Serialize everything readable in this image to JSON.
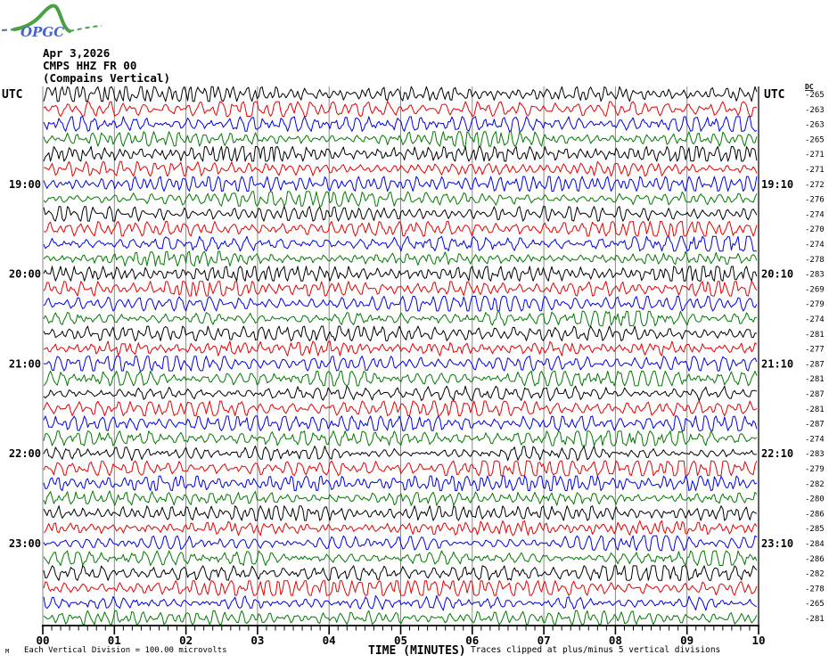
{
  "logo": {
    "text": "OPGC"
  },
  "header": {
    "utc_left": "UTC",
    "utc_right": "UTC"
  },
  "chart_data": {
    "type": "line",
    "subtype": "helicorder-seismogram",
    "title_lines": [
      "Apr 3,2026",
      "CMPS HHZ FR 00",
      "(Compains Vertical)"
    ],
    "xlabel": "TIME (MINUTES)",
    "x_axis": {
      "tick_labels": [
        "00",
        "01",
        "02",
        "03",
        "04",
        "05",
        "06",
        "07",
        "08",
        "09",
        "10"
      ],
      "minor_ticks_per_division": 7,
      "range_minutes": [
        0,
        10
      ]
    },
    "dc_header": "DC",
    "trace_colors": [
      "#000000",
      "#e60000",
      "#0000e6",
      "#007a00"
    ],
    "grid_color": "#8a8a8a",
    "rows": [
      {
        "left": "",
        "right": "",
        "dc": "-265"
      },
      {
        "left": "",
        "right": "",
        "dc": "-263"
      },
      {
        "left": "",
        "right": "",
        "dc": "-263"
      },
      {
        "left": "",
        "right": "",
        "dc": "-265"
      },
      {
        "left": "",
        "right": "",
        "dc": "-271"
      },
      {
        "left": "",
        "right": "",
        "dc": "-271"
      },
      {
        "left": "19:00",
        "right": "19:10",
        "dc": "-272"
      },
      {
        "left": "",
        "right": "",
        "dc": "-276"
      },
      {
        "left": "",
        "right": "",
        "dc": "-274"
      },
      {
        "left": "",
        "right": "",
        "dc": "-270"
      },
      {
        "left": "",
        "right": "",
        "dc": "-274"
      },
      {
        "left": "",
        "right": "",
        "dc": "-278"
      },
      {
        "left": "20:00",
        "right": "20:10",
        "dc": "-283"
      },
      {
        "left": "",
        "right": "",
        "dc": "-269"
      },
      {
        "left": "",
        "right": "",
        "dc": "-279"
      },
      {
        "left": "",
        "right": "",
        "dc": "-274"
      },
      {
        "left": "",
        "right": "",
        "dc": "-281"
      },
      {
        "left": "",
        "right": "",
        "dc": "-277"
      },
      {
        "left": "21:00",
        "right": "21:10",
        "dc": "-287"
      },
      {
        "left": "",
        "right": "",
        "dc": "-281"
      },
      {
        "left": "",
        "right": "",
        "dc": "-287"
      },
      {
        "left": "",
        "right": "",
        "dc": "-281"
      },
      {
        "left": "",
        "right": "",
        "dc": "-287"
      },
      {
        "left": "",
        "right": "",
        "dc": "-274"
      },
      {
        "left": "22:00",
        "right": "22:10",
        "dc": "-283"
      },
      {
        "left": "",
        "right": "",
        "dc": "-279"
      },
      {
        "left": "",
        "right": "",
        "dc": "-282"
      },
      {
        "left": "",
        "right": "",
        "dc": "-280"
      },
      {
        "left": "",
        "right": "",
        "dc": "-286"
      },
      {
        "left": "",
        "right": "",
        "dc": "-285"
      },
      {
        "left": "23:00",
        "right": "23:10",
        "dc": "-284"
      },
      {
        "left": "",
        "right": "",
        "dc": "-286"
      },
      {
        "left": "",
        "right": "",
        "dc": "-282"
      },
      {
        "left": "",
        "right": "",
        "dc": "-278"
      },
      {
        "left": "",
        "right": "",
        "dc": "-265"
      },
      {
        "left": "",
        "right": "",
        "dc": "-281"
      }
    ],
    "scale_note": "Each Vertical Division =  100.00 microvolts",
    "clip_note": "Traces clipped at plus/minus 5 vertical divisions",
    "footer_marker": "M"
  }
}
